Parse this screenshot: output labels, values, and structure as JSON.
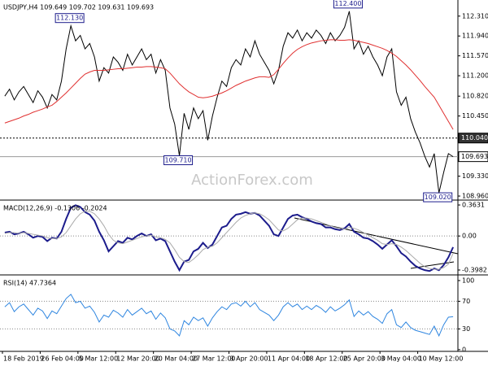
{
  "chart_data": [
    {
      "type": "line",
      "title": "USDJPY,H4  109.649 109.702 109.631 109.693",
      "watermark": "ActionForex.com",
      "ylim": [
        108.9,
        112.61
      ],
      "yticks": [
        {
          "value": 112.31,
          "label": "112.310"
        },
        {
          "value": 111.94,
          "label": "111.940"
        },
        {
          "value": 111.57,
          "label": "111.570"
        },
        {
          "value": 111.2,
          "label": "111.200"
        },
        {
          "value": 110.82,
          "label": "110.820"
        },
        {
          "value": 110.45,
          "label": "110.450"
        },
        {
          "value": 109.33,
          "label": "109.330"
        },
        {
          "value": 108.96,
          "label": "108.960"
        }
      ],
      "series": [
        {
          "color": "#000000",
          "values": [
            110.82,
            110.95,
            110.75,
            110.9,
            111.0,
            110.85,
            110.7,
            110.92,
            110.8,
            110.6,
            110.85,
            110.75,
            111.1,
            111.7,
            112.13,
            111.85,
            111.95,
            111.7,
            111.8,
            111.55,
            111.1,
            111.35,
            111.25,
            111.55,
            111.45,
            111.3,
            111.6,
            111.4,
            111.55,
            111.7,
            111.5,
            111.6,
            111.25,
            111.5,
            111.3,
            110.6,
            110.3,
            109.71,
            110.5,
            110.2,
            110.6,
            110.4,
            110.55,
            110.0,
            110.45,
            110.8,
            111.1,
            111.0,
            111.35,
            111.5,
            111.4,
            111.7,
            111.55,
            111.85,
            111.6,
            111.45,
            111.3,
            111.05,
            111.3,
            111.75,
            112.0,
            111.9,
            112.05,
            111.85,
            112.0,
            111.9,
            112.05,
            111.95,
            111.8,
            112.0,
            111.85,
            111.95,
            112.1,
            112.4,
            111.7,
            111.85,
            111.6,
            111.75,
            111.55,
            111.4,
            111.2,
            111.55,
            111.7,
            110.9,
            110.65,
            110.8,
            110.4,
            110.15,
            109.95,
            109.7,
            109.5,
            109.75,
            109.02,
            109.4,
            109.75,
            109.693
          ]
        },
        {
          "color": "#e03030",
          "values": [
            110.32,
            110.35,
            110.38,
            110.41,
            110.45,
            110.48,
            110.52,
            110.55,
            110.58,
            110.62,
            110.65,
            110.72,
            110.8,
            110.88,
            110.97,
            111.06,
            111.15,
            111.23,
            111.27,
            111.3,
            111.3,
            111.3,
            111.31,
            111.32,
            111.33,
            111.33,
            111.34,
            111.35,
            111.36,
            111.36,
            111.37,
            111.37,
            111.36,
            111.35,
            111.33,
            111.25,
            111.15,
            111.05,
            110.97,
            110.9,
            110.85,
            110.8,
            110.79,
            110.8,
            110.82,
            110.85,
            110.88,
            110.92,
            110.97,
            111.02,
            111.06,
            111.1,
            111.13,
            111.16,
            111.18,
            111.18,
            111.17,
            111.22,
            111.32,
            111.43,
            111.53,
            111.62,
            111.69,
            111.74,
            111.78,
            111.81,
            111.83,
            111.85,
            111.86,
            111.87,
            111.87,
            111.86,
            111.86,
            111.87,
            111.86,
            111.84,
            111.82,
            111.8,
            111.77,
            111.74,
            111.71,
            111.67,
            111.62,
            111.56,
            111.48,
            111.4,
            111.31,
            111.21,
            111.11,
            111.0,
            110.9,
            110.8,
            110.65,
            110.5,
            110.35,
            110.2
          ]
        }
      ],
      "annotations": [
        {
          "value": 112.13,
          "label": "112.130"
        },
        {
          "value": 112.4,
          "label": "112.400"
        },
        {
          "value": 109.71,
          "label": "109.710"
        },
        {
          "value": 109.02,
          "label": "109.020"
        }
      ],
      "hlines": [
        {
          "value": 110.04,
          "label": "110.040",
          "style": "dotted"
        },
        {
          "value": 109.693,
          "label": "109.693",
          "style": "solid"
        }
      ]
    },
    {
      "type": "line",
      "title": "MACD(12,26,9) -0.1306 -0.2024",
      "ylim": [
        -0.446,
        0.411
      ],
      "yticks": [
        0.3631,
        {
          "value": 0,
          "label": "0.00"
        },
        -0.3982
      ],
      "levels": [
        0
      ],
      "series": [
        {
          "color": "#1c1c8c",
          "values": [
            0.04,
            0.05,
            0.02,
            0.03,
            0.05,
            0.02,
            -0.02,
            0.0,
            -0.01,
            -0.06,
            -0.02,
            -0.03,
            0.05,
            0.2,
            0.33,
            0.36,
            0.34,
            0.28,
            0.25,
            0.18,
            0.05,
            -0.05,
            -0.18,
            -0.12,
            -0.06,
            -0.08,
            -0.02,
            -0.04,
            0.0,
            0.03,
            0.0,
            0.02,
            -0.05,
            -0.03,
            -0.06,
            -0.18,
            -0.3,
            -0.4,
            -0.3,
            -0.28,
            -0.18,
            -0.15,
            -0.08,
            -0.14,
            -0.1,
            0.0,
            0.1,
            0.12,
            0.2,
            0.25,
            0.26,
            0.28,
            0.26,
            0.27,
            0.24,
            0.18,
            0.12,
            0.02,
            0.0,
            0.1,
            0.2,
            0.24,
            0.25,
            0.22,
            0.2,
            0.17,
            0.15,
            0.14,
            0.1,
            0.1,
            0.08,
            0.07,
            0.09,
            0.14,
            0.05,
            0.02,
            -0.02,
            -0.03,
            -0.06,
            -0.1,
            -0.15,
            -0.1,
            -0.05,
            -0.12,
            -0.2,
            -0.24,
            -0.3,
            -0.35,
            -0.38,
            -0.4,
            -0.41,
            -0.38,
            -0.4,
            -0.34,
            -0.25,
            -0.1306
          ]
        },
        {
          "color": "#aaaaaa",
          "values": [
            0.03,
            0.04,
            0.04,
            0.03,
            0.04,
            0.03,
            0.02,
            0.01,
            0.0,
            -0.02,
            -0.03,
            -0.03,
            -0.01,
            0.04,
            0.12,
            0.2,
            0.26,
            0.29,
            0.29,
            0.26,
            0.2,
            0.12,
            0.02,
            -0.05,
            -0.08,
            -0.09,
            -0.07,
            -0.05,
            -0.03,
            -0.01,
            0.0,
            0.01,
            -0.01,
            -0.02,
            -0.04,
            -0.08,
            -0.16,
            -0.25,
            -0.3,
            -0.31,
            -0.27,
            -0.22,
            -0.16,
            -0.13,
            -0.12,
            -0.08,
            -0.02,
            0.04,
            0.1,
            0.16,
            0.21,
            0.24,
            0.26,
            0.27,
            0.26,
            0.23,
            0.19,
            0.13,
            0.07,
            0.06,
            0.09,
            0.14,
            0.19,
            0.21,
            0.21,
            0.2,
            0.18,
            0.16,
            0.14,
            0.12,
            0.1,
            0.09,
            0.08,
            0.1,
            0.09,
            0.07,
            0.04,
            0.01,
            -0.02,
            -0.05,
            -0.09,
            -0.1,
            -0.09,
            -0.1,
            -0.13,
            -0.17,
            -0.22,
            -0.27,
            -0.32,
            -0.36,
            -0.38,
            -0.39,
            -0.39,
            -0.37,
            -0.33,
            -0.2024
          ]
        }
      ]
    },
    {
      "type": "line",
      "title": "RSI(14) 47.7364",
      "ylim": [
        -2.5,
        107
      ],
      "yticks": [
        100,
        70,
        30,
        0
      ],
      "levels": [
        70,
        30
      ],
      "categories": [
        "18 Feb 2019",
        null,
        null,
        null,
        null,
        null,
        null,
        null,
        "26 Feb 04:00",
        null,
        null,
        null,
        null,
        null,
        null,
        null,
        "5 Mar 12:00",
        null,
        null,
        null,
        null,
        null,
        null,
        null,
        "12 Mar 20:00",
        null,
        null,
        null,
        null,
        null,
        null,
        null,
        "20 Mar 04:00",
        null,
        null,
        null,
        null,
        null,
        null,
        null,
        "27 Mar 12:00",
        null,
        null,
        null,
        null,
        null,
        null,
        null,
        "3 Apr 20:00",
        null,
        null,
        null,
        null,
        null,
        null,
        null,
        "11 Apr 04:00",
        null,
        null,
        null,
        null,
        null,
        null,
        null,
        "18 Apr 12:00",
        null,
        null,
        null,
        null,
        null,
        null,
        null,
        "25 Apr 20:00",
        null,
        null,
        null,
        null,
        null,
        null,
        null,
        "3 May 04:00",
        null,
        null,
        null,
        null,
        null,
        null,
        null,
        "10 May 12:00",
        null,
        null,
        null,
        null,
        null,
        null,
        null
      ],
      "series": [
        {
          "color": "#2f86e0",
          "values": [
            62,
            68,
            55,
            62,
            66,
            58,
            50,
            60,
            56,
            45,
            56,
            52,
            63,
            74,
            80,
            68,
            70,
            60,
            63,
            54,
            40,
            50,
            47,
            57,
            53,
            47,
            58,
            50,
            55,
            60,
            52,
            56,
            44,
            53,
            46,
            30,
            27,
            20,
            42,
            36,
            47,
            42,
            46,
            34,
            46,
            55,
            62,
            58,
            66,
            68,
            63,
            70,
            62,
            68,
            58,
            54,
            50,
            42,
            50,
            62,
            68,
            62,
            66,
            58,
            63,
            58,
            64,
            60,
            54,
            62,
            56,
            60,
            65,
            72,
            48,
            56,
            50,
            55,
            48,
            44,
            38,
            52,
            58,
            36,
            32,
            40,
            32,
            28,
            26,
            24,
            22,
            34,
            20,
            36,
            47,
            47.7364
          ]
        }
      ]
    }
  ]
}
